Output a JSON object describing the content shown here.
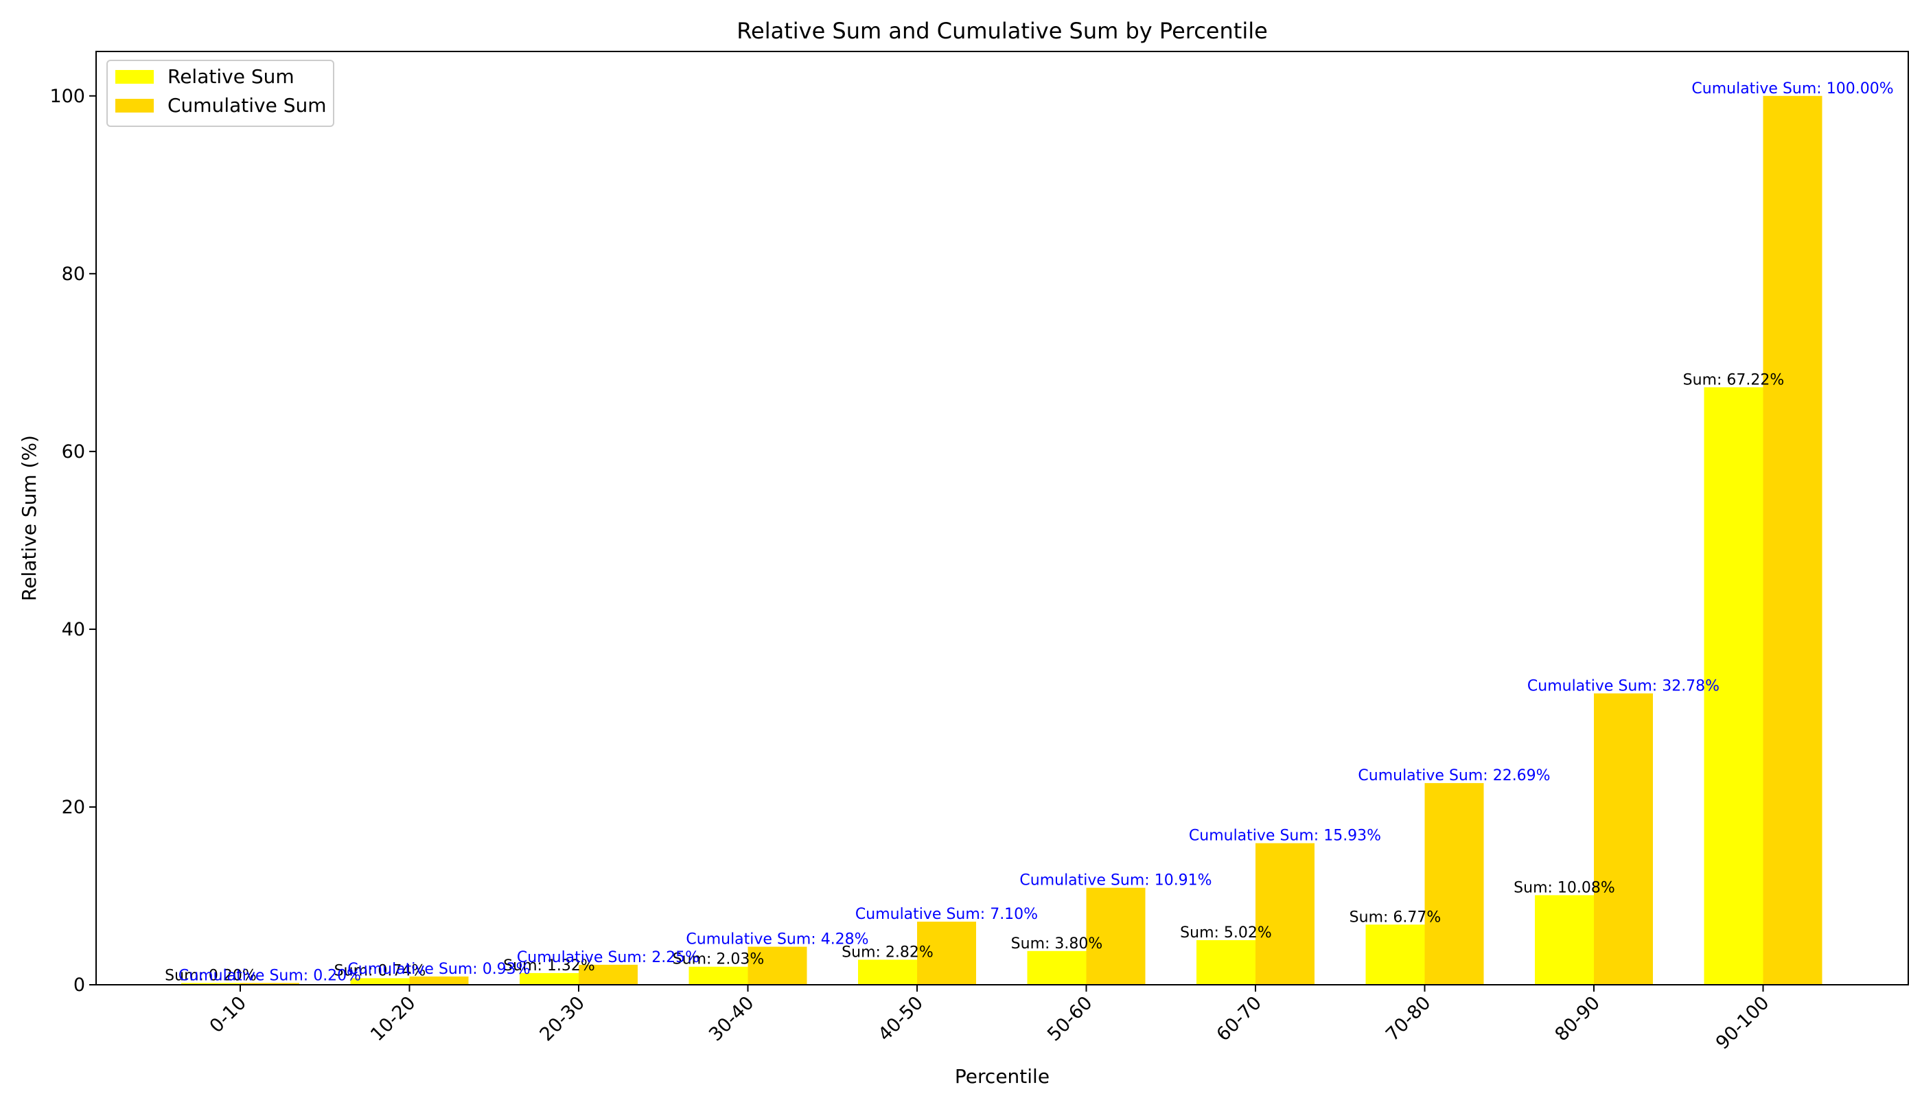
{
  "chart_data": {
    "type": "bar",
    "title": "Relative Sum and Cumulative Sum by Percentile",
    "xlabel": "Percentile",
    "ylabel": "Relative Sum (%)",
    "ylim": [
      0,
      105
    ],
    "yticks": [
      0,
      20,
      40,
      60,
      80,
      100
    ],
    "grid": false,
    "legend_position": "top-left",
    "categories": [
      "0-10",
      "10-20",
      "20-30",
      "30-40",
      "40-50",
      "50-60",
      "60-70",
      "70-80",
      "80-90",
      "90-100"
    ],
    "series": [
      {
        "name": "Relative Sum",
        "color": "#ffff00",
        "label_color": "#000000",
        "values": [
          0.2,
          0.74,
          1.32,
          2.03,
          2.82,
          3.8,
          5.02,
          6.77,
          10.08,
          67.22
        ],
        "labels": [
          "Sum: 0.20%",
          "Sum: 0.74%",
          "Sum: 1.32%",
          "Sum: 2.03%",
          "Sum: 2.82%",
          "Sum: 3.80%",
          "Sum: 5.02%",
          "Sum: 6.77%",
          "Sum: 10.08%",
          "Sum: 67.22%"
        ]
      },
      {
        "name": "Cumulative Sum",
        "color": "#ffd700",
        "label_color": "#0000ff",
        "values": [
          0.2,
          0.93,
          2.25,
          4.28,
          7.1,
          10.91,
          15.93,
          22.69,
          32.78,
          100.0
        ],
        "labels": [
          "Cumulative Sum: 0.20%",
          "Cumulative Sum: 0.93%",
          "Cumulative Sum: 2.25%",
          "Cumulative Sum: 4.28%",
          "Cumulative Sum: 7.10%",
          "Cumulative Sum: 10.91%",
          "Cumulative Sum: 15.93%",
          "Cumulative Sum: 22.69%",
          "Cumulative Sum: 32.78%",
          "Cumulative Sum: 100.00%"
        ]
      }
    ]
  }
}
